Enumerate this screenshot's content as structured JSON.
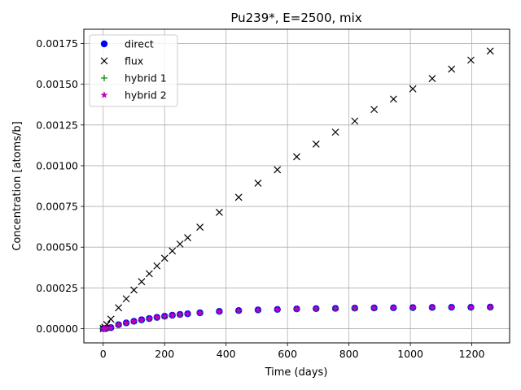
{
  "chart_data": {
    "type": "scatter",
    "title": "Pu239*, E=2500, mix",
    "xlabel": "Time (days)",
    "ylabel": "Concentration [atoms/b]",
    "xlim": [
      -63,
      1323
    ],
    "ylim": [
      -8.75e-05,
      0.0018375
    ],
    "xticks": [
      0,
      200,
      400,
      600,
      800,
      1000,
      1200
    ],
    "xtick_labels": [
      "0",
      "200",
      "400",
      "600",
      "800",
      "1000",
      "1200"
    ],
    "yticks": [
      0,
      0.00025,
      0.0005,
      0.00075,
      0.001,
      0.00125,
      0.0015,
      0.00175
    ],
    "ytick_labels": [
      "0.00000",
      "0.00025",
      "0.00050",
      "0.00075",
      "0.00100",
      "0.00125",
      "0.00150",
      "0.00175"
    ],
    "grid": true,
    "legend_position": "top-left",
    "legend": [
      "direct",
      "flux",
      "hybrid 1",
      "hybrid 2"
    ],
    "series": [
      {
        "name": "direct",
        "marker": "circle",
        "color": "#0000ff",
        "x": [
          0,
          5,
          12,
          25,
          50,
          75,
          100,
          125,
          150,
          175,
          200,
          225,
          250,
          275,
          315,
          378,
          441,
          504,
          567,
          630,
          693,
          756,
          819,
          882,
          945,
          1008,
          1071,
          1134,
          1197,
          1260
        ],
        "y": [
          0,
          1e-06,
          3e-06,
          6e-06,
          2.4e-05,
          3.5e-05,
          4.5e-05,
          5.4e-05,
          6.2e-05,
          6.9e-05,
          7.6e-05,
          8.2e-05,
          8.7e-05,
          9.1e-05,
          9.7e-05,
          0.000106,
          0.000111,
          0.000115,
          0.000118,
          0.000121,
          0.000123,
          0.000124,
          0.000126,
          0.000127,
          0.000128,
          0.000129,
          0.00013,
          0.000131,
          0.000131,
          0.000132
        ]
      },
      {
        "name": "flux",
        "marker": "x",
        "color": "#000000",
        "x": [
          0,
          5,
          12,
          25,
          50,
          75,
          100,
          125,
          150,
          175,
          200,
          225,
          250,
          275,
          315,
          378,
          441,
          504,
          567,
          630,
          693,
          756,
          819,
          882,
          945,
          1008,
          1071,
          1134,
          1197,
          1260
        ],
        "y": [
          0,
          8e-06,
          2.5e-05,
          5.8e-05,
          0.000128,
          0.000183,
          0.000237,
          0.000288,
          0.000337,
          0.000385,
          0.000432,
          0.000477,
          0.000519,
          0.000558,
          0.000623,
          0.000714,
          0.000806,
          0.000893,
          0.000975,
          0.001055,
          0.001133,
          0.001206,
          0.001274,
          0.001345,
          0.001409,
          0.001472,
          0.001535,
          0.001593,
          0.001648,
          0.001704
        ]
      },
      {
        "name": "hybrid 1",
        "marker": "plus",
        "color": "#008000",
        "x": [
          0,
          5,
          12,
          25,
          50,
          75,
          100,
          125,
          150,
          175,
          200,
          225,
          250,
          275,
          315,
          378,
          441,
          504,
          567,
          630,
          693,
          756,
          819,
          882,
          945,
          1008,
          1071,
          1134,
          1197,
          1260
        ],
        "y": [
          0,
          1e-06,
          3e-06,
          6e-06,
          2.4e-05,
          3.5e-05,
          4.5e-05,
          5.4e-05,
          6.2e-05,
          6.9e-05,
          7.6e-05,
          8.2e-05,
          8.7e-05,
          9.1e-05,
          9.7e-05,
          0.000106,
          0.000111,
          0.000115,
          0.000118,
          0.000121,
          0.000123,
          0.000124,
          0.000126,
          0.000127,
          0.000128,
          0.000129,
          0.00013,
          0.000131,
          0.000131,
          0.000132
        ]
      },
      {
        "name": "hybrid 2",
        "marker": "star",
        "color": "#bf00bf",
        "x": [
          0,
          5,
          12,
          25,
          50,
          75,
          100,
          125,
          150,
          175,
          200,
          225,
          250,
          275,
          315,
          378,
          441,
          504,
          567,
          630,
          693,
          756,
          819,
          882,
          945,
          1008,
          1071,
          1134,
          1197,
          1260
        ],
        "y": [
          0,
          1e-06,
          3e-06,
          6e-06,
          2.4e-05,
          3.5e-05,
          4.5e-05,
          5.4e-05,
          6.2e-05,
          6.9e-05,
          7.6e-05,
          8.2e-05,
          8.7e-05,
          9.1e-05,
          9.7e-05,
          0.000106,
          0.000111,
          0.000115,
          0.000118,
          0.000121,
          0.000123,
          0.000124,
          0.000126,
          0.000127,
          0.000128,
          0.000129,
          0.00013,
          0.000131,
          0.000131,
          0.000132
        ]
      }
    ]
  }
}
